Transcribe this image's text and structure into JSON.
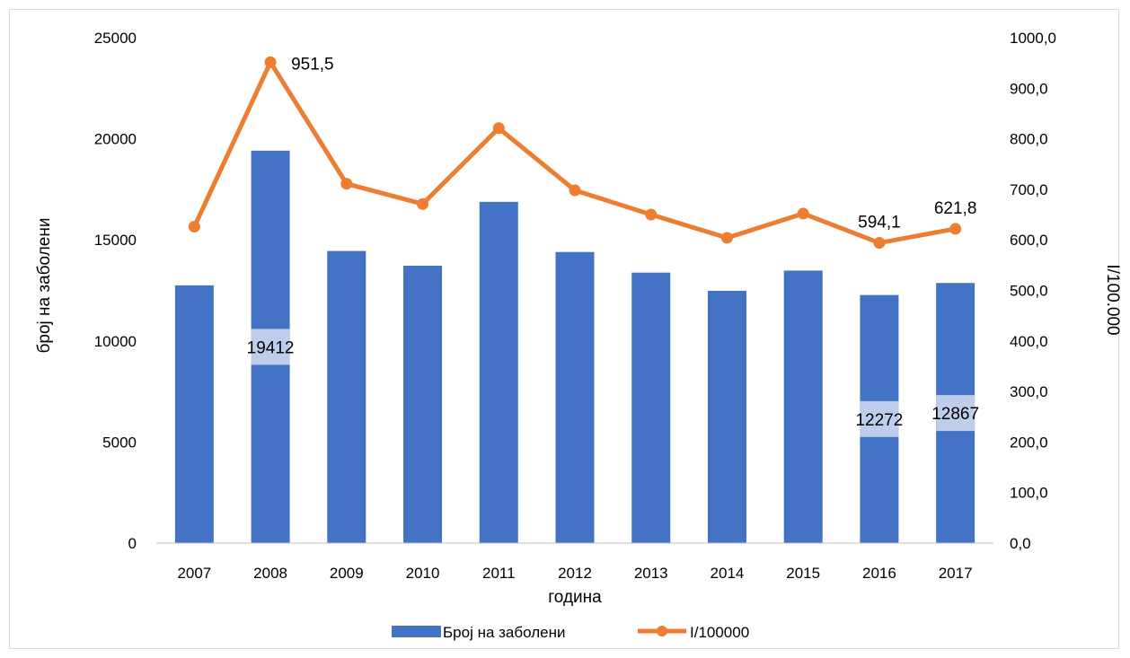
{
  "chart_data": {
    "type": "bar",
    "categories": [
      "2007",
      "2008",
      "2009",
      "2010",
      "2011",
      "2012",
      "2013",
      "2014",
      "2015",
      "2016",
      "2017"
    ],
    "series": [
      {
        "name": "Број  на заболени",
        "type": "bar",
        "axis": "left",
        "color": "#4472c4",
        "values": [
          12750,
          19412,
          14450,
          13720,
          16880,
          14400,
          13380,
          12480,
          13480,
          12272,
          12867
        ]
      },
      {
        "name": "I/100000",
        "type": "line",
        "axis": "right",
        "color": "#ed7d31",
        "values": [
          626,
          951.5,
          711,
          671,
          821,
          698,
          650,
          604,
          652,
          594.1,
          621.8
        ]
      }
    ],
    "data_labels": [
      {
        "series": 0,
        "index": 1,
        "text": "19412"
      },
      {
        "series": 0,
        "index": 9,
        "text": "12272"
      },
      {
        "series": 0,
        "index": 10,
        "text": "12867"
      },
      {
        "series": 1,
        "index": 1,
        "text": "951,5"
      },
      {
        "series": 1,
        "index": 9,
        "text": "594,1"
      },
      {
        "series": 1,
        "index": 10,
        "text": "621,8"
      }
    ],
    "xlabel": "година",
    "ylabel_left": "број на заболени",
    "ylabel_right": "I/100.000",
    "ylim_left": [
      0,
      25000
    ],
    "yticks_left": [
      "0",
      "5000",
      "10000",
      "15000",
      "20000",
      "25000"
    ],
    "ylim_right": [
      0,
      1000
    ],
    "yticks_right": [
      "0,0",
      "100,0",
      "200,0",
      "300,0",
      "400,0",
      "500,0",
      "600,0",
      "700,0",
      "800,0",
      "900,0",
      "1000,0"
    ],
    "grid": false,
    "legend_position": "bottom"
  }
}
